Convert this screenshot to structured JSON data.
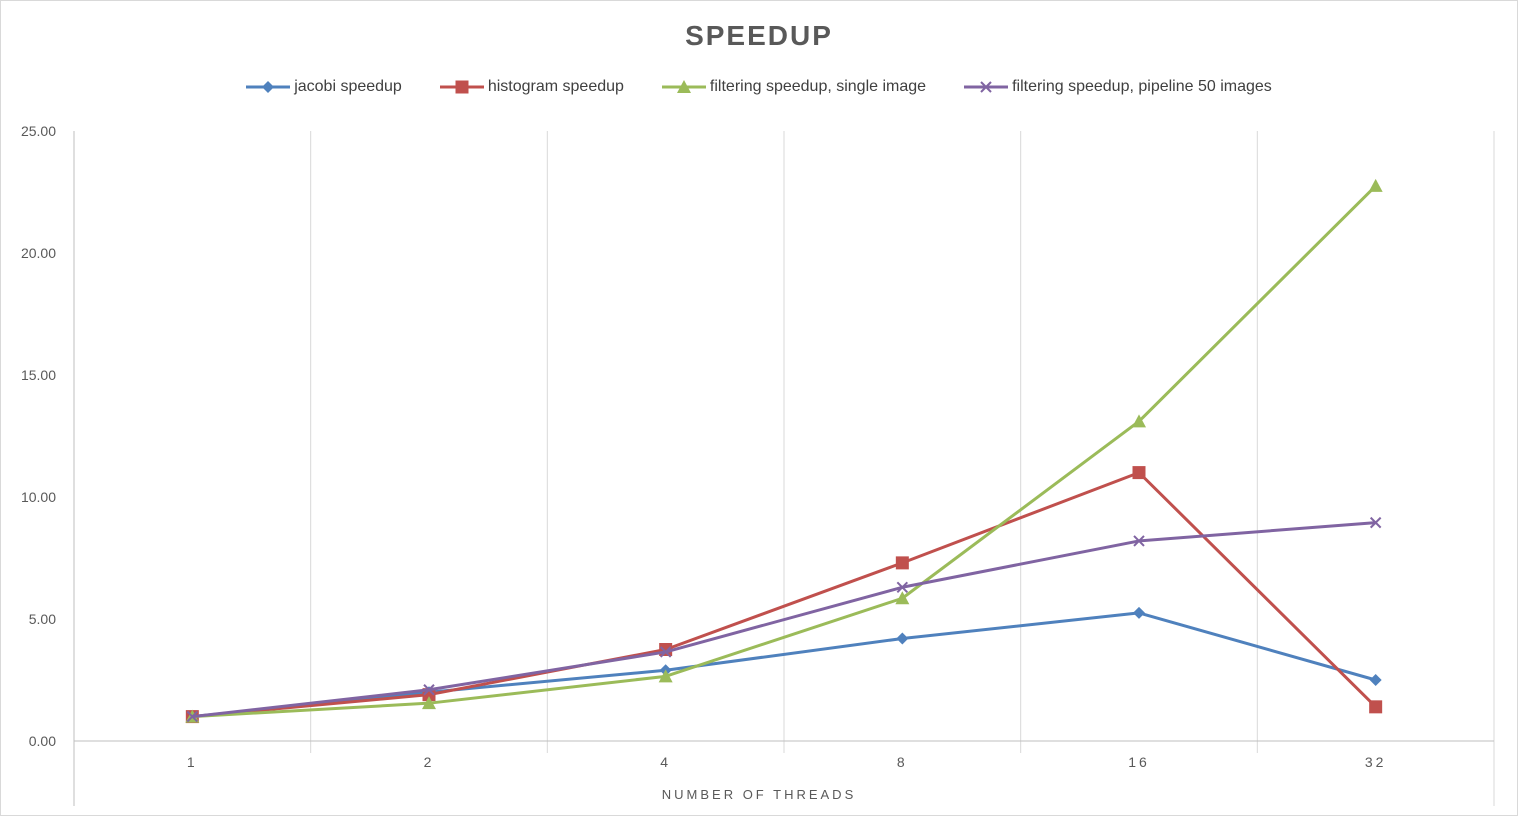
{
  "chart_data": {
    "type": "line",
    "title": "SPEEDUP",
    "xlabel": "NUMBER OF THREADS",
    "ylabel": "",
    "categories": [
      "1",
      "2",
      "4",
      "8",
      "16",
      "32"
    ],
    "ylim": [
      0,
      25
    ],
    "yticks": [
      "0.00",
      "5.00",
      "10.00",
      "15.00",
      "20.00",
      "25.00"
    ],
    "grid": "vertical",
    "legend_position": "top",
    "series": [
      {
        "name": "jacobi speedup",
        "color": "#4f81bd",
        "marker": "diamond",
        "values": [
          1.0,
          2.0,
          2.9,
          4.2,
          5.25,
          2.5
        ]
      },
      {
        "name": "histogram speedup",
        "color": "#c0504d",
        "marker": "square",
        "values": [
          1.0,
          1.9,
          3.75,
          7.3,
          11.0,
          1.4
        ]
      },
      {
        "name": "filtering speedup, single image",
        "color": "#9bbb59",
        "marker": "triangle",
        "values": [
          1.0,
          1.55,
          2.65,
          5.85,
          13.1,
          22.75
        ]
      },
      {
        "name": "filtering speedup, pipeline 50 images",
        "color": "#8064a2",
        "marker": "x",
        "values": [
          1.0,
          2.1,
          3.65,
          6.3,
          8.2,
          8.95
        ]
      }
    ]
  }
}
